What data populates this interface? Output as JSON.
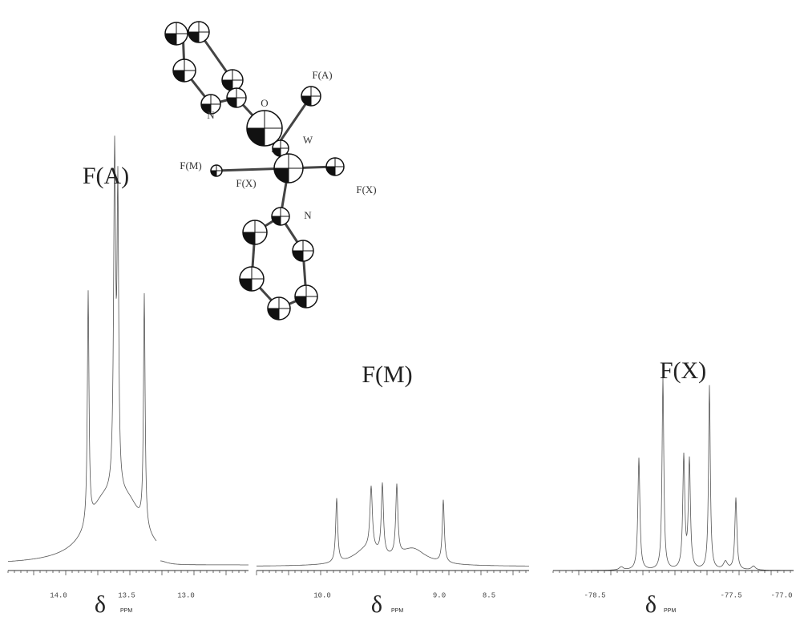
{
  "panels": [
    {
      "label": "F(A)",
      "ticks": [
        "14.0",
        "13.5",
        "13.0"
      ],
      "symbol": "δ",
      "unit": "PPM"
    },
    {
      "label": "F(M)",
      "ticks": [
        "10.0",
        "9.0",
        "8.5"
      ],
      "symbol": "δ",
      "unit": "PPM"
    },
    {
      "label": "F(X)",
      "ticks": [
        "-78.5",
        "-77.5",
        "-77.0"
      ],
      "symbol": "δ",
      "unit": "PPM"
    }
  ],
  "molecule": {
    "atoms": [
      "F(A)",
      "O",
      "W",
      "F(M)",
      "F(X)",
      "F(X)",
      "N",
      "N"
    ]
  }
}
